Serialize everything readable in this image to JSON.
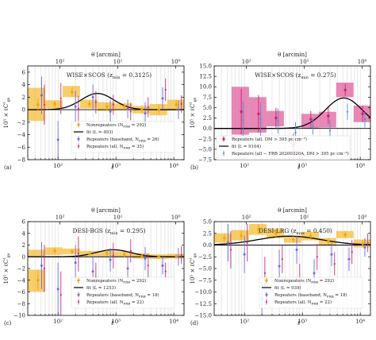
{
  "figure": {
    "ylabel_text": "10⁵ × ℓC",
    "ylabel_sub": "gs",
    "ylabel_sup": "ℓ",
    "xlabel": "ℓ",
    "theta_label": "θ [arcmin]"
  },
  "chart_data": [
    {
      "panel": "a",
      "panel_label": "(a)",
      "type": "scatter",
      "title": "WISE×SCOS (z",
      "title_sub": "min",
      "title_value": " = 0.3125)",
      "xscale": "log",
      "xlim": [
        30,
        15000
      ],
      "ylim": [
        -8,
        7
      ],
      "yticks": [
        -8,
        -6,
        -4,
        -2,
        0,
        2,
        4,
        6
      ],
      "xticks": [
        100,
        1000,
        10000
      ],
      "xtick_labels": [
        "10²",
        "10³",
        "10⁴"
      ],
      "theta_ticks": [
        100,
        10,
        1
      ],
      "theta_tick_labels": [
        "10²",
        "10¹",
        "10⁰"
      ],
      "legend": {
        "position": "lower-center",
        "entries": [
          {
            "key": "nonrep",
            "label": "Nonrepeaters (N",
            "sub": "FRB",
            "tail": " = 292)"
          },
          {
            "key": "fit",
            "label": "fit (L = 493)"
          },
          {
            "key": "base",
            "label": "Repeaters (baseband, N",
            "sub": "FRB",
            "tail": " = 26)"
          },
          {
            "key": "all",
            "label": "Repeaters (all, N",
            "sub": "FRB",
            "tail": " = 35)"
          }
        ]
      },
      "boxes": [
        {
          "x": [
            30,
            60
          ],
          "y": [
            -1.8,
            3.5
          ]
        },
        {
          "x": [
            60,
            120
          ],
          "y": [
            0.2,
            1.5
          ]
        },
        {
          "x": [
            120,
            240
          ],
          "y": [
            2.0,
            3.8
          ]
        },
        {
          "x": [
            240,
            480
          ],
          "y": [
            0.2,
            1.6
          ]
        },
        {
          "x": [
            480,
            960
          ],
          "y": [
            -0.2,
            1.2
          ]
        },
        {
          "x": [
            960,
            1920
          ],
          "y": [
            -0.1,
            1.0
          ]
        },
        {
          "x": [
            1920,
            3840
          ],
          "y": [
            -0.6,
            0.6
          ]
        },
        {
          "x": [
            3840,
            7680
          ],
          "y": [
            -0.9,
            0.9
          ]
        },
        {
          "x": [
            7680,
            15000
          ],
          "y": [
            -0.1,
            1.6
          ]
        }
      ],
      "nonrepeaters": [
        {
          "x": 45,
          "y": 0.8,
          "err": 1.0
        },
        {
          "x": 88,
          "y": 0.9,
          "err": 0.5
        },
        {
          "x": 175,
          "y": 2.8,
          "err": 0.8
        },
        {
          "x": 350,
          "y": 0.9,
          "err": 0.6
        },
        {
          "x": 700,
          "y": 0.5,
          "err": 0.6
        },
        {
          "x": 1400,
          "y": 0.5,
          "err": 0.5
        },
        {
          "x": 2800,
          "y": 0.0,
          "err": 0.6
        },
        {
          "x": 5500,
          "y": 0.0,
          "err": 0.8
        },
        {
          "x": 11000,
          "y": 0.8,
          "err": 0.8
        }
      ],
      "baseband": [
        {
          "x": 52,
          "y": 2.3,
          "err": 3.0
        },
        {
          "x": 100,
          "y": -4.8,
          "err": 3.0
        },
        {
          "x": 200,
          "y": 0.5,
          "err": 2.5
        },
        {
          "x": 400,
          "y": 2.0,
          "err": 2.0
        },
        {
          "x": 800,
          "y": -0.3,
          "err": 1.8
        },
        {
          "x": 1600,
          "y": 0.1,
          "err": 1.5
        },
        {
          "x": 3200,
          "y": -0.6,
          "err": 1.8
        },
        {
          "x": 6400,
          "y": 1.8,
          "err": 1.8
        },
        {
          "x": 12000,
          "y": 0.0,
          "err": 1.5
        }
      ],
      "repeaters_all": [
        {
          "x": 58,
          "y": 0.8,
          "err": 3.2
        },
        {
          "x": 112,
          "y": 1.8,
          "err": 2.5
        },
        {
          "x": 225,
          "y": 0.2,
          "err": 2.0
        },
        {
          "x": 450,
          "y": 1.2,
          "err": 1.8
        },
        {
          "x": 900,
          "y": 0.8,
          "err": 1.6
        },
        {
          "x": 1800,
          "y": -0.3,
          "err": 1.4
        },
        {
          "x": 3600,
          "y": 0.4,
          "err": 1.6
        },
        {
          "x": 7200,
          "y": 3.2,
          "err": 1.8
        },
        {
          "x": 13500,
          "y": 0.9,
          "err": 1.4
        }
      ],
      "fit": {
        "amp": 2.6,
        "peak_ell": 480,
        "width": 0.28
      }
    },
    {
      "panel": "b",
      "panel_label": "(b)",
      "type": "scatter",
      "title": "WISE×SCOS (z",
      "title_sub": "min",
      "title_value": " = 0.275)",
      "xscale": "log",
      "xlim": [
        30,
        15000
      ],
      "ylim": [
        -7.5,
        15
      ],
      "yticks": [
        -7.5,
        -5.0,
        -2.5,
        0.0,
        2.5,
        5.0,
        7.5,
        10.0,
        12.5,
        15.0
      ],
      "ytick_labels": [
        "−7.5",
        "−5.0",
        "−2.5",
        "0.0",
        "2.5",
        "5.0",
        "7.5",
        "10.0",
        "12.5",
        "15.0"
      ],
      "xticks": [
        100,
        1000,
        10000
      ],
      "xtick_labels": [
        "10²",
        "10³",
        "10⁴"
      ],
      "theta_ticks": [
        100,
        10,
        1
      ],
      "theta_tick_labels": [
        "10²",
        "10¹",
        "10⁰"
      ],
      "legend": {
        "position": "lower-left",
        "entries": [
          {
            "key": "dm",
            "label": "Repeaters (all, DM > 395 pc cm⁻³)"
          },
          {
            "key": "fit",
            "label": "fit (L = 9104)"
          },
          {
            "key": "frb",
            "label": "Repeaters (all − FRB 20200320A, DM > 395 pc cm⁻³)"
          }
        ]
      },
      "boxes": [
        {
          "x": [
            60,
            120
          ],
          "y": [
            -1.5,
            10.0
          ]
        },
        {
          "x": [
            120,
            240
          ],
          "y": [
            -1.0,
            7.5
          ]
        },
        {
          "x": [
            240,
            480
          ],
          "y": [
            0.5,
            4.2
          ]
        },
        {
          "x": [
            960,
            1920
          ],
          "y": [
            0.0,
            3.5
          ]
        },
        {
          "x": [
            1920,
            3840
          ],
          "y": [
            0.2,
            4.0
          ]
        },
        {
          "x": [
            3840,
            7680
          ],
          "y": [
            7.5,
            11.0
          ]
        },
        {
          "x": [
            7680,
            15000
          ],
          "y": [
            1.5,
            5.5
          ]
        }
      ],
      "dm_points": [
        {
          "x": 88,
          "y": 4.0,
          "err": 5.5
        },
        {
          "x": 175,
          "y": 3.5,
          "err": 4.5
        },
        {
          "x": 350,
          "y": 2.5,
          "err": 2.5
        },
        {
          "x": 700,
          "y": -3.8,
          "err": 2.5
        },
        {
          "x": 1400,
          "y": 2.2,
          "err": 2.0
        },
        {
          "x": 2800,
          "y": 3.0,
          "err": 2.0
        },
        {
          "x": 5500,
          "y": 9.2,
          "err": 1.5
        },
        {
          "x": 11000,
          "y": 3.5,
          "err": 2.0
        }
      ],
      "frb_points": [
        {
          "x": 95,
          "y": 2.0,
          "err": 4.5
        },
        {
          "x": 190,
          "y": 2.2,
          "err": 4.0
        },
        {
          "x": 380,
          "y": 1.8,
          "err": 3.0
        },
        {
          "x": 760,
          "y": -1.0,
          "err": 2.5
        },
        {
          "x": 1520,
          "y": 0.5,
          "err": 2.0
        },
        {
          "x": 3000,
          "y": -0.5,
          "err": 2.5
        },
        {
          "x": 6000,
          "y": 4.0,
          "err": 2.0
        },
        {
          "x": 12000,
          "y": 2.2,
          "err": 2.0
        }
      ],
      "fit": {
        "amp": 7.3,
        "peak_ell": 5200,
        "width": 0.32
      }
    },
    {
      "panel": "c",
      "panel_label": "(c)",
      "type": "scatter",
      "title": "DESI-BGS (z",
      "title_sub": "min",
      "title_value": " = 0.295)",
      "xscale": "log",
      "xlim": [
        30,
        15000
      ],
      "ylim": [
        -10,
        6
      ],
      "yticks": [
        -10,
        -8,
        -6,
        -4,
        -2,
        0,
        2,
        4,
        6
      ],
      "xticks": [
        100,
        1000,
        10000
      ],
      "xtick_labels": [
        "10²",
        "10³",
        "10⁴"
      ],
      "theta_ticks": [
        100,
        10,
        1
      ],
      "theta_tick_labels": [
        "10²",
        "10¹",
        "10⁰"
      ],
      "legend": {
        "position": "lower-center",
        "entries": [
          {
            "key": "nonrep",
            "label": "Nonrepeaters (N",
            "sub": "FRB",
            "tail": " = 292)"
          },
          {
            "key": "fit",
            "label": "fit (L = 1253)"
          },
          {
            "key": "base",
            "label": "Repeaters (baseband, N",
            "sub": "FRB",
            "tail": " = 18)"
          },
          {
            "key": "all",
            "label": "Repeaters (all, N",
            "sub": "FRB",
            "tail": " = 22)"
          }
        ]
      },
      "boxes": [
        {
          "x": [
            30,
            60
          ],
          "y": [
            -6.0,
            -2.2
          ]
        },
        {
          "x": [
            30,
            60
          ],
          "y": [
            0.0,
            1.2
          ]
        },
        {
          "x": [
            60,
            120
          ],
          "y": [
            0.3,
            1.6
          ]
        },
        {
          "x": [
            120,
            240
          ],
          "y": [
            0.4,
            1.4
          ]
        },
        {
          "x": [
            240,
            480
          ],
          "y": [
            0.1,
            1.0
          ]
        },
        {
          "x": [
            480,
            960
          ],
          "y": [
            0.1,
            1.0
          ]
        },
        {
          "x": [
            960,
            1920
          ],
          "y": [
            0.0,
            0.9
          ]
        },
        {
          "x": [
            1920,
            3840
          ],
          "y": [
            -0.3,
            0.6
          ]
        },
        {
          "x": [
            3840,
            7680
          ],
          "y": [
            -0.4,
            0.4
          ]
        },
        {
          "x": [
            7680,
            15000
          ],
          "y": [
            -0.3,
            0.5
          ]
        }
      ],
      "nonrepeaters": [
        {
          "x": 45,
          "y": -4.0,
          "err": 1.8
        },
        {
          "x": 88,
          "y": 1.0,
          "err": 0.6
        },
        {
          "x": 175,
          "y": 0.9,
          "err": 0.5
        },
        {
          "x": 350,
          "y": 0.5,
          "err": 0.5
        },
        {
          "x": 700,
          "y": 0.6,
          "err": 0.5
        },
        {
          "x": 1400,
          "y": 0.4,
          "err": 0.5
        },
        {
          "x": 2800,
          "y": 0.1,
          "err": 0.5
        },
        {
          "x": 5500,
          "y": 0.0,
          "err": 0.4
        },
        {
          "x": 11000,
          "y": 0.1,
          "err": 0.4
        }
      ],
      "baseband": [
        {
          "x": 52,
          "y": -1.5,
          "err": 4.0
        },
        {
          "x": 100,
          "y": -5.5,
          "err": 4.5
        },
        {
          "x": 200,
          "y": -1.0,
          "err": 3.0
        },
        {
          "x": 400,
          "y": -2.5,
          "err": 2.5
        },
        {
          "x": 800,
          "y": -0.5,
          "err": 2.0
        },
        {
          "x": 1600,
          "y": -2.0,
          "err": 2.0
        },
        {
          "x": 3200,
          "y": -0.3,
          "err": 2.0
        },
        {
          "x": 6400,
          "y": -1.5,
          "err": 1.5
        },
        {
          "x": 12000,
          "y": 0.0,
          "err": 1.5
        }
      ],
      "repeaters_all": [
        {
          "x": 58,
          "y": -2.0,
          "err": 4.0
        },
        {
          "x": 112,
          "y": -6.5,
          "err": 4.0
        },
        {
          "x": 225,
          "y": 0.5,
          "err": 3.0
        },
        {
          "x": 450,
          "y": -3.5,
          "err": 2.5
        },
        {
          "x": 900,
          "y": 0.2,
          "err": 2.2
        },
        {
          "x": 1800,
          "y": 1.0,
          "err": 2.0
        },
        {
          "x": 3600,
          "y": -1.5,
          "err": 2.0
        },
        {
          "x": 7200,
          "y": -2.5,
          "err": 1.5
        },
        {
          "x": 13500,
          "y": 0.3,
          "err": 1.5
        }
      ],
      "fit": {
        "amp": 1.2,
        "peak_ell": 900,
        "width": 0.3
      }
    },
    {
      "panel": "d",
      "panel_label": "(d)",
      "type": "scatter",
      "title": "DESI-LRG (z",
      "title_sub": "max",
      "title_value": " = 0.450)",
      "xscale": "log",
      "xlim": [
        30,
        15000
      ],
      "ylim": [
        -15,
        5
      ],
      "yticks": [
        -15.0,
        -12.5,
        -10.0,
        -7.5,
        -5.0,
        -2.5,
        0.0,
        2.5,
        5.0
      ],
      "ytick_labels": [
        "−15.0",
        "−12.5",
        "−10.0",
        "−7.5",
        "−5.0",
        "−2.5",
        "0.0",
        "2.5",
        "5.0"
      ],
      "xticks": [
        100,
        1000,
        10000
      ],
      "xtick_labels": [
        "10²",
        "10³",
        "10⁴"
      ],
      "theta_ticks": [
        100,
        10,
        1
      ],
      "theta_tick_labels": [
        "10²",
        "10¹",
        "10⁰"
      ],
      "legend": {
        "position": "lower-right",
        "entries": [
          {
            "key": "nonrep",
            "label": "Nonrepeaters (N",
            "sub": "FRB",
            "tail": " = 292)"
          },
          {
            "key": "fit",
            "label": "fit (L = 939)"
          },
          {
            "key": "base",
            "label": "Repeaters (baseband, N",
            "sub": "FRB",
            "tail": " = 18)"
          },
          {
            "key": "all",
            "label": "Repeaters (all, N",
            "sub": "FRB",
            "tail": " = 22)"
          }
        ]
      },
      "boxes": [
        {
          "x": [
            30,
            60
          ],
          "y": [
            0.5,
            2.5
          ]
        },
        {
          "x": [
            60,
            120
          ],
          "y": [
            1.0,
            3.2
          ]
        },
        {
          "x": [
            120,
            240
          ],
          "y": [
            2.2,
            4.5
          ]
        },
        {
          "x": [
            240,
            480
          ],
          "y": [
            1.5,
            3.5
          ]
        },
        {
          "x": [
            480,
            960
          ],
          "y": [
            0.5,
            2.0
          ]
        },
        {
          "x": [
            960,
            1920
          ],
          "y": [
            1.0,
            2.8
          ]
        },
        {
          "x": [
            1920,
            3840
          ],
          "y": [
            0.0,
            1.5
          ]
        },
        {
          "x": [
            3840,
            7680
          ],
          "y": [
            1.5,
            3.0
          ]
        },
        {
          "x": [
            7680,
            15000
          ],
          "y": [
            -0.5,
            1.2
          ]
        }
      ],
      "nonrepeaters": [
        {
          "x": 45,
          "y": 1.5,
          "err": 1.0
        },
        {
          "x": 88,
          "y": 2.0,
          "err": 1.1
        },
        {
          "x": 175,
          "y": 3.3,
          "err": 1.1
        },
        {
          "x": 350,
          "y": 2.5,
          "err": 1.0
        },
        {
          "x": 700,
          "y": 1.2,
          "err": 0.7
        },
        {
          "x": 1400,
          "y": 1.9,
          "err": 0.9
        },
        {
          "x": 2800,
          "y": 0.8,
          "err": 0.7
        },
        {
          "x": 5500,
          "y": 2.2,
          "err": 0.8
        },
        {
          "x": 11000,
          "y": 0.3,
          "err": 0.8
        }
      ],
      "baseband": [
        {
          "x": 52,
          "y": 0.5,
          "err": 4.0
        },
        {
          "x": 100,
          "y": -2.0,
          "err": 4.0
        },
        {
          "x": 200,
          "y": -11.5,
          "err": 3.5
        },
        {
          "x": 400,
          "y": -4.5,
          "err": 3.5
        },
        {
          "x": 800,
          "y": -1.0,
          "err": 3.0
        },
        {
          "x": 1600,
          "y": -6.0,
          "err": 3.0
        },
        {
          "x": 3200,
          "y": -2.0,
          "err": 2.5
        },
        {
          "x": 6400,
          "y": -3.0,
          "err": 2.5
        },
        {
          "x": 12000,
          "y": -0.5,
          "err": 2.0
        }
      ],
      "repeaters_all": [
        {
          "x": 58,
          "y": -1.0,
          "err": 4.0
        },
        {
          "x": 112,
          "y": 0.5,
          "err": 4.0
        },
        {
          "x": 225,
          "y": -6.0,
          "err": 3.5
        },
        {
          "x": 450,
          "y": -3.0,
          "err": 3.0
        },
        {
          "x": 900,
          "y": -7.0,
          "err": 3.0
        },
        {
          "x": 1800,
          "y": -2.5,
          "err": 2.8
        },
        {
          "x": 3600,
          "y": -4.0,
          "err": 2.5
        },
        {
          "x": 7200,
          "y": -1.5,
          "err": 2.5
        },
        {
          "x": 13500,
          "y": 0.5,
          "err": 2.0
        }
      ],
      "fit": {
        "amp": 1.9,
        "peak_ell": 600,
        "width": 0.55
      }
    }
  ],
  "colors": {
    "box_orange": "#f5b82e",
    "box_pink": "#e0609e",
    "nonrep": "#f0a800",
    "base": "#6a6adf",
    "all": "#c03080",
    "dm": "#d0206a",
    "frb": "#4a8fd8",
    "fit": "#000000",
    "grid": "#cfcfcf"
  }
}
